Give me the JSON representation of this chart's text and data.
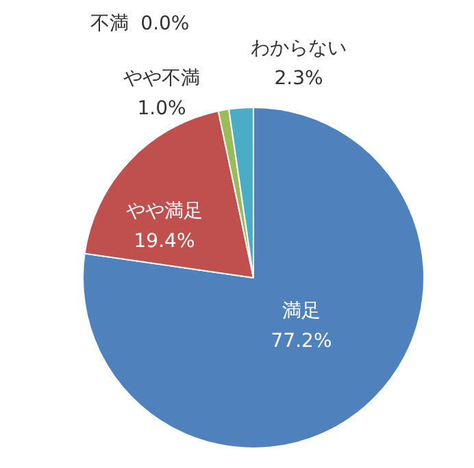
{
  "chart_data": {
    "type": "pie",
    "categories": [
      "満足",
      "やや満足",
      "やや不満",
      "不満",
      "わからない"
    ],
    "values": [
      77.2,
      19.4,
      1.0,
      0.0,
      2.3
    ],
    "colors": [
      "#4f81bd",
      "#c0504d",
      "#9bbb59",
      "#8064a2",
      "#4bacc6"
    ],
    "value_labels": [
      "77.2%",
      "19.4%",
      "1.0%",
      "0.0%",
      "2.3%"
    ],
    "legend": false
  }
}
